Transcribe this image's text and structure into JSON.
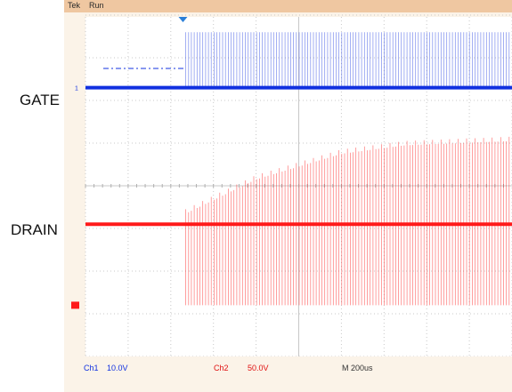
{
  "instrument": {
    "brand": "Tek",
    "state": "Run"
  },
  "channels": [
    {
      "id": "Ch1",
      "scale": "10.0V",
      "name": "GATE",
      "color": "#1030e0",
      "marker": "1"
    },
    {
      "id": "Ch2",
      "scale": "50.0V",
      "name": "DRAIN",
      "color": "#ff1a1a",
      "marker": "2"
    }
  ],
  "timebase": "M 200us",
  "chart_data": {
    "type": "line",
    "title": "",
    "x_divisions": 10,
    "y_divisions": 8,
    "grid": true,
    "trigger_division": 1.2,
    "series": [
      {
        "name": "GATE",
        "baseline_div": 6.3,
        "onset_div": 2.35,
        "pulse_top_div": 7.6,
        "pulse_count": 115,
        "pulse_end_div": 10.0
      },
      {
        "name": "DRAIN",
        "baseline_div": 3.1,
        "onset_div": 2.35,
        "envelope_high_div": [
          [
            2.35,
            3.4
          ],
          [
            4.0,
            4.2
          ],
          [
            6.0,
            4.8
          ],
          [
            7.5,
            5.0
          ],
          [
            10.0,
            5.1
          ]
        ],
        "envelope_low_div": 1.2,
        "pulse_count": 115,
        "pulse_end_div": 10.0
      }
    ]
  }
}
